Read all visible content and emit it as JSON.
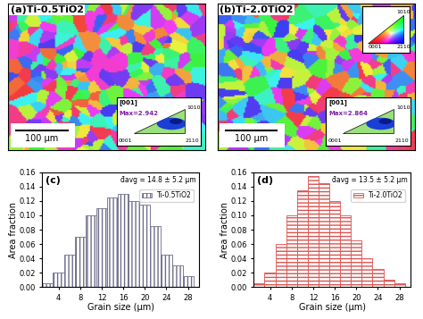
{
  "maps": [
    {
      "label": "(a)Ti-0.5TiO2",
      "scale_bar": "100 μm",
      "inset": {
        "direction": "[001]",
        "max": "Max=2.942",
        "corners": [
          "1010",
          "0001",
          "2110"
        ]
      }
    },
    {
      "label": "(b)Ti-2.0TiO2",
      "scale_bar": "100 μm",
      "inset": {
        "direction": "[001]",
        "max": "Max=2.864",
        "corners": [
          "1010",
          "0001",
          "2110"
        ]
      },
      "color_key": [
        "1010",
        "0001",
        "2110"
      ]
    }
  ],
  "chart_data": [
    {
      "type": "histogram",
      "title": "(c)",
      "x_label": "Grain size (μm)",
      "y_label": "Area fraction",
      "annotation": "d̄avg = 14.8 ± 5.2 μm",
      "bins": [
        1,
        3,
        5,
        7,
        9,
        11,
        13,
        15,
        17,
        19,
        21,
        23,
        25,
        27,
        29
      ],
      "series": [
        {
          "name": "Ti-0.5TiO2",
          "color": "#6e6e8c",
          "values": [
            0.005,
            0.02,
            0.045,
            0.07,
            0.1,
            0.11,
            0.125,
            0.13,
            0.12,
            0.115,
            0.085,
            0.045,
            0.03,
            0.015
          ]
        }
      ],
      "xlim": [
        1,
        30
      ],
      "xticks": [
        4,
        8,
        12,
        16,
        20,
        24,
        28
      ],
      "ylim": [
        0,
        0.16
      ],
      "yticks": [
        {
          "value": 0,
          "label": "0.00"
        },
        {
          "value": 0.02,
          "label": "0.02"
        },
        {
          "value": 0.04,
          "label": "0.04"
        },
        {
          "value": 0.06,
          "label": "0.06"
        },
        {
          "value": 0.08,
          "label": "0.08"
        },
        {
          "value": 0.1,
          "label": "0.10"
        },
        {
          "value": 0.12,
          "label": "0.12"
        },
        {
          "value": 0.14,
          "label": "0.14"
        },
        {
          "value": 0.16,
          "label": "0.16"
        }
      ],
      "legend": "upper right"
    },
    {
      "type": "histogram",
      "title": "(d)",
      "x_label": "Grain size (μm)",
      "y_label": "Area fraction",
      "annotation": "d̄avg = 13.5 ± 5.2 μm",
      "bins": [
        1,
        3,
        5,
        7,
        9,
        11,
        13,
        15,
        17,
        19,
        21,
        23,
        25,
        27,
        29
      ],
      "series": [
        {
          "name": "Ti-2.0TiO2",
          "color": "#d9534f",
          "values": [
            0.005,
            0.02,
            0.06,
            0.1,
            0.135,
            0.155,
            0.145,
            0.12,
            0.1,
            0.065,
            0.04,
            0.025,
            0.01,
            0.005
          ]
        }
      ],
      "xlim": [
        1,
        30
      ],
      "xticks": [
        4,
        8,
        12,
        16,
        20,
        24,
        28
      ],
      "ylim": [
        0,
        0.16
      ],
      "yticks": [
        {
          "value": 0,
          "label": "0.00"
        },
        {
          "value": 0.02,
          "label": "0.02"
        },
        {
          "value": 0.04,
          "label": "0.04"
        },
        {
          "value": 0.06,
          "label": "0.06"
        },
        {
          "value": 0.08,
          "label": "0.08"
        },
        {
          "value": 0.1,
          "label": "0.10"
        },
        {
          "value": 0.12,
          "label": "0.12"
        },
        {
          "value": 0.14,
          "label": "0.14"
        },
        {
          "value": 0.16,
          "label": "0.16"
        }
      ],
      "legend": "upper right"
    }
  ]
}
